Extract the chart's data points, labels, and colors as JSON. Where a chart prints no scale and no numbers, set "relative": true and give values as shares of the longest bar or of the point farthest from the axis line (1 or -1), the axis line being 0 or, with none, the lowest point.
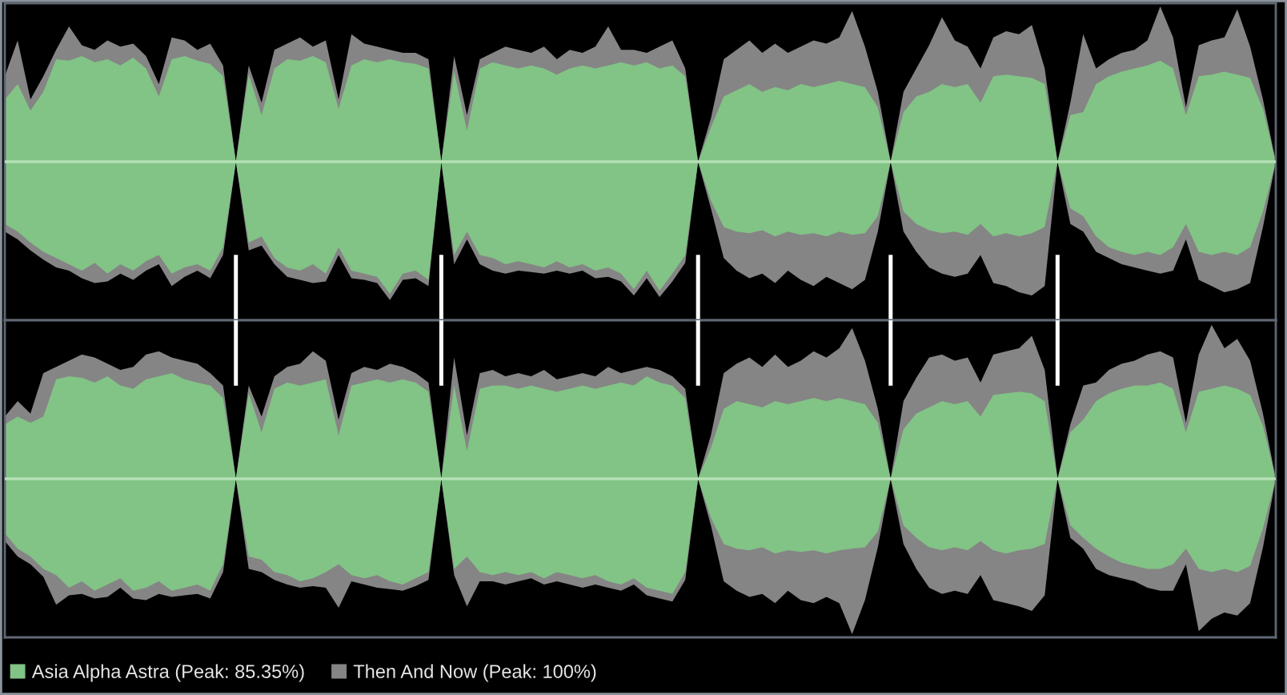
{
  "chart_data": [
    {
      "type": "area",
      "relative": true,
      "categories": [
        null,
        null,
        null,
        null,
        null,
        null,
        null,
        null,
        null,
        null,
        null,
        null,
        null,
        null,
        null,
        null,
        null,
        null,
        null,
        null,
        null,
        null,
        null,
        null,
        null,
        null,
        null,
        null,
        null,
        null,
        null,
        null,
        null,
        null,
        null,
        null,
        null,
        null,
        null,
        null,
        null,
        null,
        null,
        null,
        null,
        null,
        null,
        null,
        null,
        null,
        null,
        null,
        null,
        null,
        null,
        null,
        null,
        null,
        null,
        null,
        null,
        null,
        null,
        null,
        null,
        null,
        null,
        null,
        null,
        null,
        null,
        null,
        null,
        null,
        null,
        null,
        null,
        null,
        null,
        null,
        null,
        null,
        null,
        null,
        null,
        null,
        null,
        null,
        null,
        null,
        null,
        null,
        null,
        null,
        null,
        null,
        null,
        null,
        null,
        null
      ],
      "series": [
        {
          "color": "#82c386",
          "values": [
            0.4,
            0.5,
            0.33,
            0.45,
            0.66,
            0.65,
            0.68,
            0.64,
            0.66,
            0.62,
            0.67,
            0.6,
            0.42,
            0.66,
            0.68,
            0.65,
            0.63,
            0.55,
            0,
            0.56,
            0.3,
            0.6,
            0.66,
            0.65,
            0.68,
            0.64,
            0.34,
            0.62,
            0.66,
            0.64,
            0.66,
            0.64,
            0.63,
            0.6,
            0,
            0.58,
            0.2,
            0.6,
            0.64,
            0.62,
            0.6,
            0.62,
            0.6,
            0.56,
            0.6,
            0.62,
            0.6,
            0.62,
            0.64,
            0.62,
            0.64,
            0.6,
            0.62,
            0.55,
            0,
            0.22,
            0.42,
            0.46,
            0.5,
            0.45,
            0.48,
            0.46,
            0.5,
            0.48,
            0.5,
            0.52,
            0.5,
            0.48,
            0.35,
            0,
            0.32,
            0.42,
            0.45,
            0.5,
            0.48,
            0.5,
            0.38,
            0.55,
            0.56,
            0.55,
            0.54,
            0.5,
            0,
            0.3,
            0.32,
            0.5,
            0.55,
            0.58,
            0.6,
            0.62,
            0.65,
            0.6,
            0.3,
            0.55,
            0.56,
            0.58,
            0.56,
            0.54,
            0.34,
            0
          ]
        },
        {
          "color": "#82c386",
          "values": [
            -0.4,
            -0.45,
            -0.52,
            -0.58,
            -0.62,
            -0.66,
            -0.7,
            -0.65,
            -0.72,
            -0.66,
            -0.7,
            -0.64,
            -0.6,
            -0.72,
            -0.68,
            -0.66,
            -0.7,
            -0.55,
            0,
            -0.52,
            -0.48,
            -0.62,
            -0.68,
            -0.7,
            -0.66,
            -0.72,
            -0.55,
            -0.7,
            -0.72,
            -0.74,
            -0.85,
            -0.72,
            -0.7,
            -0.76,
            0,
            -0.6,
            -0.45,
            -0.6,
            -0.62,
            -0.66,
            -0.64,
            -0.66,
            -0.68,
            -0.64,
            -0.68,
            -0.66,
            -0.7,
            -0.68,
            -0.72,
            -0.82,
            -0.7,
            -0.83,
            -0.72,
            -0.6,
            0,
            -0.25,
            -0.42,
            -0.45,
            -0.46,
            -0.44,
            -0.48,
            -0.45,
            -0.47,
            -0.46,
            -0.48,
            -0.45,
            -0.47,
            -0.46,
            -0.35,
            0,
            -0.32,
            -0.4,
            -0.44,
            -0.46,
            -0.45,
            -0.47,
            -0.4,
            -0.48,
            -0.46,
            -0.48,
            -0.46,
            -0.42,
            0,
            -0.3,
            -0.35,
            -0.48,
            -0.55,
            -0.58,
            -0.6,
            -0.58,
            -0.6,
            -0.55,
            -0.4,
            -0.58,
            -0.6,
            -0.58,
            -0.6,
            -0.55,
            -0.32,
            0
          ]
        },
        {
          "color": "#858585",
          "values": [
            0.55,
            0.78,
            0.4,
            0.55,
            0.72,
            0.87,
            0.75,
            0.72,
            0.78,
            0.74,
            0.76,
            0.68,
            0.5,
            0.8,
            0.78,
            0.72,
            0.76,
            0.62,
            0,
            0.62,
            0.38,
            0.72,
            0.76,
            0.8,
            0.74,
            0.78,
            0.4,
            0.82,
            0.76,
            0.74,
            0.72,
            0.7,
            0.7,
            0.66,
            0,
            0.68,
            0.3,
            0.66,
            0.7,
            0.74,
            0.72,
            0.7,
            0.74,
            0.66,
            0.72,
            0.7,
            0.74,
            0.87,
            0.72,
            0.72,
            0.7,
            0.74,
            0.78,
            0.6,
            0,
            0.28,
            0.66,
            0.72,
            0.78,
            0.7,
            0.76,
            0.7,
            0.74,
            0.78,
            0.76,
            0.8,
            0.97,
            0.74,
            0.45,
            0,
            0.45,
            0.6,
            0.75,
            0.93,
            0.78,
            0.74,
            0.6,
            0.8,
            0.84,
            0.82,
            0.88,
            0.6,
            0,
            0.38,
            0.82,
            0.6,
            0.66,
            0.7,
            0.72,
            0.78,
            1,
            0.8,
            0.35,
            0.75,
            0.78,
            0.8,
            0.98,
            0.74,
            0.4,
            0
          ]
        },
        {
          "color": "#858585",
          "values": [
            -0.45,
            -0.5,
            -0.57,
            -0.63,
            -0.68,
            -0.7,
            -0.75,
            -0.78,
            -0.77,
            -0.72,
            -0.76,
            -0.7,
            -0.66,
            -0.8,
            -0.74,
            -0.7,
            -0.75,
            -0.6,
            0,
            -0.57,
            -0.54,
            -0.66,
            -0.74,
            -0.76,
            -0.78,
            -0.77,
            -0.6,
            -0.75,
            -0.76,
            -0.78,
            -0.89,
            -0.76,
            -0.75,
            -0.8,
            0,
            -0.66,
            -0.5,
            -0.66,
            -0.7,
            -0.72,
            -0.7,
            -0.71,
            -0.72,
            -0.7,
            -0.72,
            -0.7,
            -0.75,
            -0.74,
            -0.77,
            -0.86,
            -0.75,
            -0.87,
            -0.77,
            -0.65,
            0,
            -0.3,
            -0.62,
            -0.7,
            -0.75,
            -0.72,
            -0.78,
            -0.7,
            -0.76,
            -0.8,
            -0.74,
            -0.78,
            -0.82,
            -0.76,
            -0.45,
            0,
            -0.45,
            -0.58,
            -0.68,
            -0.72,
            -0.74,
            -0.72,
            -0.6,
            -0.78,
            -0.8,
            -0.84,
            -0.86,
            -0.8,
            0,
            -0.4,
            -0.45,
            -0.58,
            -0.62,
            -0.66,
            -0.68,
            -0.7,
            -0.72,
            -0.7,
            -0.5,
            -0.76,
            -0.8,
            -0.84,
            -0.82,
            -0.78,
            -0.42,
            0
          ]
        }
      ],
      "ref_lines": [
        {
          "axis": "y",
          "value": 0,
          "color": "#b4e0b4"
        }
      ]
    },
    {
      "type": "area",
      "relative": true,
      "legend": "bottom left",
      "categories": [
        null,
        null,
        null,
        null,
        null,
        null,
        null,
        null,
        null,
        null,
        null,
        null,
        null,
        null,
        null,
        null,
        null,
        null,
        null,
        null,
        null,
        null,
        null,
        null,
        null,
        null,
        null,
        null,
        null,
        null,
        null,
        null,
        null,
        null,
        null,
        null,
        null,
        null,
        null,
        null,
        null,
        null,
        null,
        null,
        null,
        null,
        null,
        null,
        null,
        null,
        null,
        null,
        null,
        null,
        null,
        null,
        null,
        null,
        null,
        null,
        null,
        null,
        null,
        null,
        null,
        null,
        null,
        null,
        null,
        null,
        null,
        null,
        null,
        null,
        null,
        null,
        null,
        null,
        null,
        null,
        null,
        null,
        null,
        null,
        null,
        null,
        null,
        null,
        null,
        null,
        null,
        null,
        null,
        null,
        null,
        null,
        null,
        null,
        null,
        null
      ],
      "series": [
        {
          "name": "Asia Alpha Astra (Peak: 85.35%)",
          "color": "#82c386",
          "values": [
            0.35,
            0.4,
            0.36,
            0.4,
            0.64,
            0.66,
            0.65,
            0.62,
            0.66,
            0.6,
            0.58,
            0.64,
            0.66,
            0.68,
            0.64,
            0.62,
            0.6,
            0.52,
            0,
            0.55,
            0.3,
            0.58,
            0.62,
            0.6,
            0.62,
            0.64,
            0.28,
            0.6,
            0.62,
            0.64,
            0.62,
            0.64,
            0.62,
            0.56,
            0,
            0.6,
            0.18,
            0.58,
            0.6,
            0.6,
            0.58,
            0.6,
            0.58,
            0.56,
            0.58,
            0.6,
            0.58,
            0.6,
            0.62,
            0.6,
            0.66,
            0.62,
            0.6,
            0.52,
            0,
            0.2,
            0.45,
            0.5,
            0.48,
            0.46,
            0.5,
            0.48,
            0.5,
            0.52,
            0.5,
            0.52,
            0.5,
            0.48,
            0.36,
            0,
            0.32,
            0.42,
            0.46,
            0.5,
            0.48,
            0.5,
            0.4,
            0.54,
            0.55,
            0.56,
            0.55,
            0.5,
            0,
            0.3,
            0.38,
            0.5,
            0.55,
            0.58,
            0.6,
            0.6,
            0.62,
            0.58,
            0.3,
            0.56,
            0.58,
            0.6,
            0.58,
            0.54,
            0.34,
            0
          ]
        },
        {
          "color": "#82c386",
          "values": [
            -0.35,
            -0.45,
            -0.5,
            -0.58,
            -0.62,
            -0.7,
            -0.66,
            -0.72,
            -0.68,
            -0.64,
            -0.72,
            -0.7,
            -0.66,
            -0.72,
            -0.7,
            -0.68,
            -0.72,
            -0.55,
            0,
            -0.5,
            -0.52,
            -0.6,
            -0.62,
            -0.66,
            -0.64,
            -0.6,
            -0.55,
            -0.62,
            -0.64,
            -0.62,
            -0.66,
            -0.68,
            -0.64,
            -0.6,
            0,
            -0.58,
            -0.5,
            -0.6,
            -0.62,
            -0.6,
            -0.62,
            -0.6,
            -0.64,
            -0.6,
            -0.62,
            -0.64,
            -0.62,
            -0.66,
            -0.68,
            -0.64,
            -0.7,
            -0.72,
            -0.74,
            -0.6,
            0,
            -0.25,
            -0.42,
            -0.45,
            -0.46,
            -0.44,
            -0.48,
            -0.46,
            -0.47,
            -0.46,
            -0.48,
            -0.46,
            -0.45,
            -0.44,
            -0.34,
            0,
            -0.3,
            -0.38,
            -0.44,
            -0.46,
            -0.44,
            -0.46,
            -0.4,
            -0.46,
            -0.48,
            -0.46,
            -0.45,
            -0.42,
            0,
            -0.3,
            -0.38,
            -0.45,
            -0.5,
            -0.54,
            -0.56,
            -0.58,
            -0.58,
            -0.55,
            -0.45,
            -0.58,
            -0.6,
            -0.58,
            -0.6,
            -0.56,
            -0.32,
            0
          ]
        },
        {
          "name": "Then And Now (Peak: 100%)",
          "color": "#858585",
          "values": [
            0.4,
            0.5,
            0.42,
            0.68,
            0.72,
            0.76,
            0.8,
            0.78,
            0.74,
            0.7,
            0.72,
            0.8,
            0.82,
            0.78,
            0.76,
            0.74,
            0.68,
            0.6,
            0,
            0.6,
            0.4,
            0.66,
            0.72,
            0.74,
            0.82,
            0.76,
            0.38,
            0.68,
            0.72,
            0.7,
            0.74,
            0.72,
            0.68,
            0.62,
            0,
            0.78,
            0.28,
            0.68,
            0.7,
            0.66,
            0.68,
            0.66,
            0.7,
            0.64,
            0.66,
            0.68,
            0.66,
            0.72,
            0.68,
            0.7,
            0.72,
            0.7,
            0.66,
            0.58,
            0,
            0.28,
            0.68,
            0.74,
            0.78,
            0.72,
            0.8,
            0.72,
            0.76,
            0.82,
            0.78,
            0.84,
            0.97,
            0.76,
            0.45,
            0,
            0.5,
            0.65,
            0.78,
            0.8,
            0.76,
            0.78,
            0.62,
            0.8,
            0.82,
            0.84,
            0.92,
            0.7,
            0,
            0.35,
            0.6,
            0.62,
            0.7,
            0.74,
            0.76,
            0.8,
            0.82,
            0.78,
            0.36,
            0.8,
            0.99,
            0.84,
            0.9,
            0.76,
            0.42,
            0
          ]
        },
        {
          "color": "#858585",
          "values": [
            -0.4,
            -0.5,
            -0.55,
            -0.63,
            -0.81,
            -0.75,
            -0.74,
            -0.77,
            -0.76,
            -0.7,
            -0.77,
            -0.78,
            -0.74,
            -0.76,
            -0.75,
            -0.74,
            -0.77,
            -0.6,
            0,
            -0.58,
            -0.6,
            -0.65,
            -0.68,
            -0.7,
            -0.69,
            -0.7,
            -0.83,
            -0.66,
            -0.68,
            -0.7,
            -0.71,
            -0.72,
            -0.69,
            -0.65,
            0,
            -0.62,
            -0.82,
            -0.66,
            -0.66,
            -0.68,
            -0.66,
            -0.64,
            -0.68,
            -0.66,
            -0.68,
            -0.7,
            -0.68,
            -0.7,
            -0.72,
            -0.68,
            -0.75,
            -0.77,
            -0.79,
            -0.65,
            0,
            -0.3,
            -0.66,
            -0.72,
            -0.76,
            -0.74,
            -0.8,
            -0.72,
            -0.78,
            -0.8,
            -0.76,
            -0.8,
            -1,
            -0.78,
            -0.44,
            0,
            -0.42,
            -0.58,
            -0.7,
            -0.74,
            -0.72,
            -0.74,
            -0.62,
            -0.78,
            -0.8,
            -0.82,
            -0.85,
            -0.75,
            0,
            -0.38,
            -0.45,
            -0.58,
            -0.62,
            -0.64,
            -0.66,
            -0.7,
            -0.72,
            -0.72,
            -0.55,
            -0.98,
            -0.9,
            -0.86,
            -0.88,
            -0.8,
            -0.44,
            0
          ]
        }
      ],
      "ref_lines": [
        {
          "axis": "y",
          "value": 0,
          "color": "#b4e0b4"
        }
      ]
    }
  ]
}
